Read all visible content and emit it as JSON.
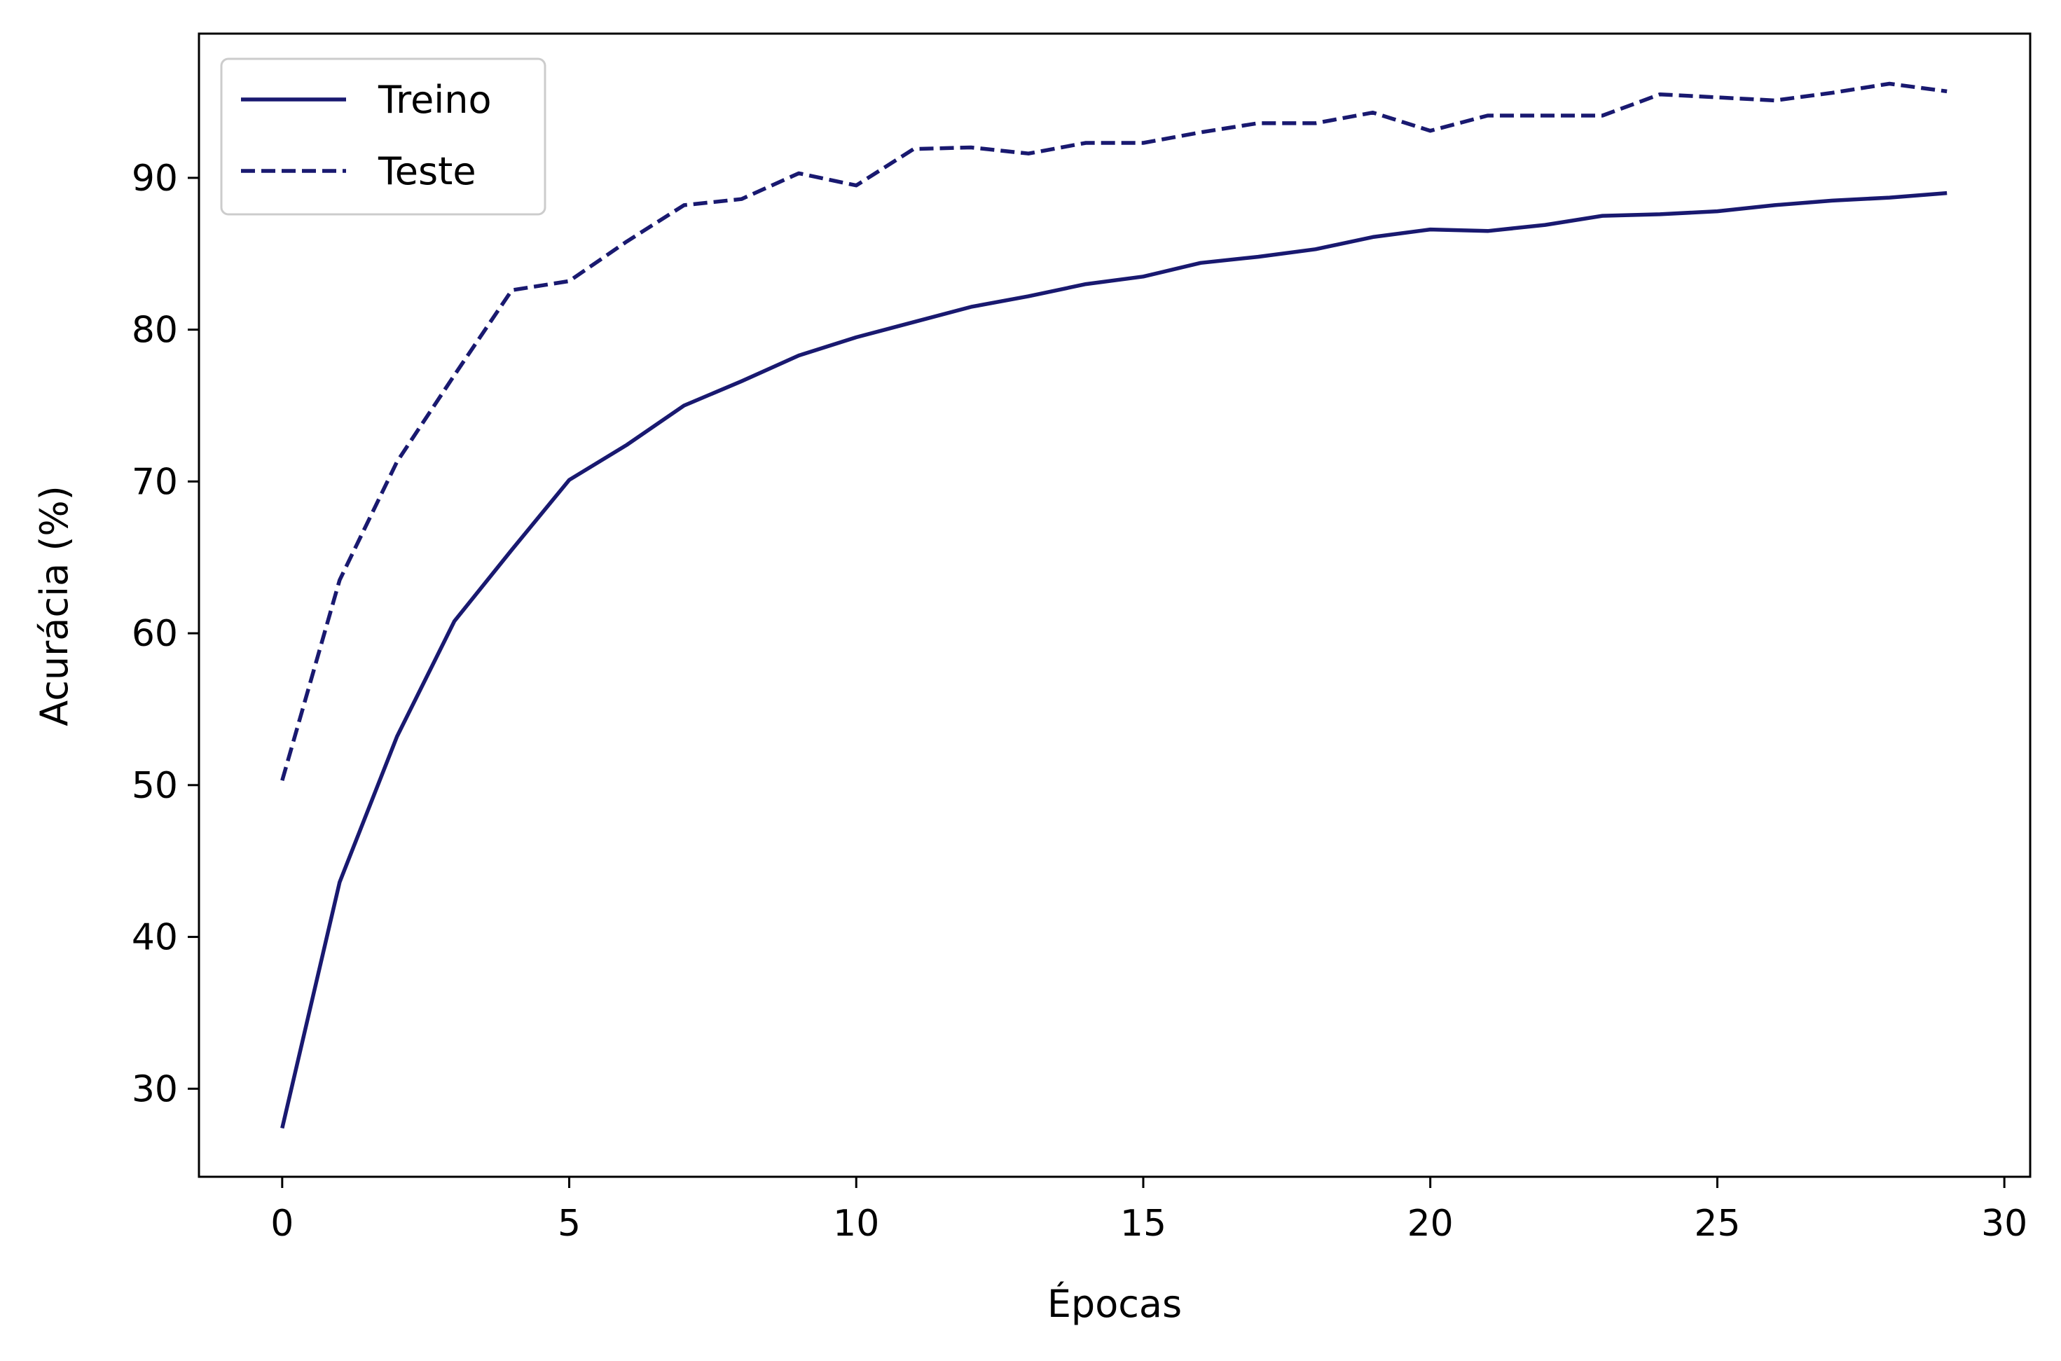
{
  "chart_data": {
    "type": "line",
    "title": "",
    "xlabel": "Épocas",
    "ylabel": "Acurácia (%)",
    "xlim": [
      -1.45,
      30.45
    ],
    "ylim": [
      24.2,
      99.5
    ],
    "xticks": [
      0,
      5,
      10,
      15,
      20,
      25,
      30
    ],
    "yticks": [
      30,
      40,
      50,
      60,
      70,
      80,
      90
    ],
    "grid": false,
    "legend": "top-left",
    "line_color": "#191970",
    "x": [
      0,
      1,
      2,
      3,
      4,
      5,
      6,
      7,
      8,
      9,
      10,
      11,
      12,
      13,
      14,
      15,
      16,
      17,
      18,
      19,
      20,
      21,
      22,
      23,
      24,
      25,
      26,
      27,
      28,
      29
    ],
    "series": [
      {
        "name": "Treino",
        "style": "solid",
        "values": [
          27.4,
          43.6,
          53.2,
          60.8,
          65.5,
          70.1,
          72.4,
          75.0,
          76.6,
          78.3,
          79.5,
          80.5,
          81.5,
          82.2,
          83.0,
          83.5,
          84.4,
          84.8,
          85.3,
          86.1,
          86.6,
          86.5,
          86.9,
          87.5,
          87.6,
          87.8,
          88.2,
          88.5,
          88.7,
          89.0
        ]
      },
      {
        "name": "Teste",
        "style": "dashed",
        "values": [
          50.3,
          63.5,
          71.3,
          77.0,
          82.6,
          83.2,
          85.8,
          88.2,
          88.6,
          90.3,
          89.5,
          91.9,
          92.0,
          91.6,
          92.3,
          92.3,
          93.0,
          93.6,
          93.6,
          94.3,
          93.1,
          94.1,
          94.1,
          94.1,
          95.5,
          95.3,
          95.1,
          95.6,
          96.2,
          95.7
        ]
      }
    ]
  }
}
